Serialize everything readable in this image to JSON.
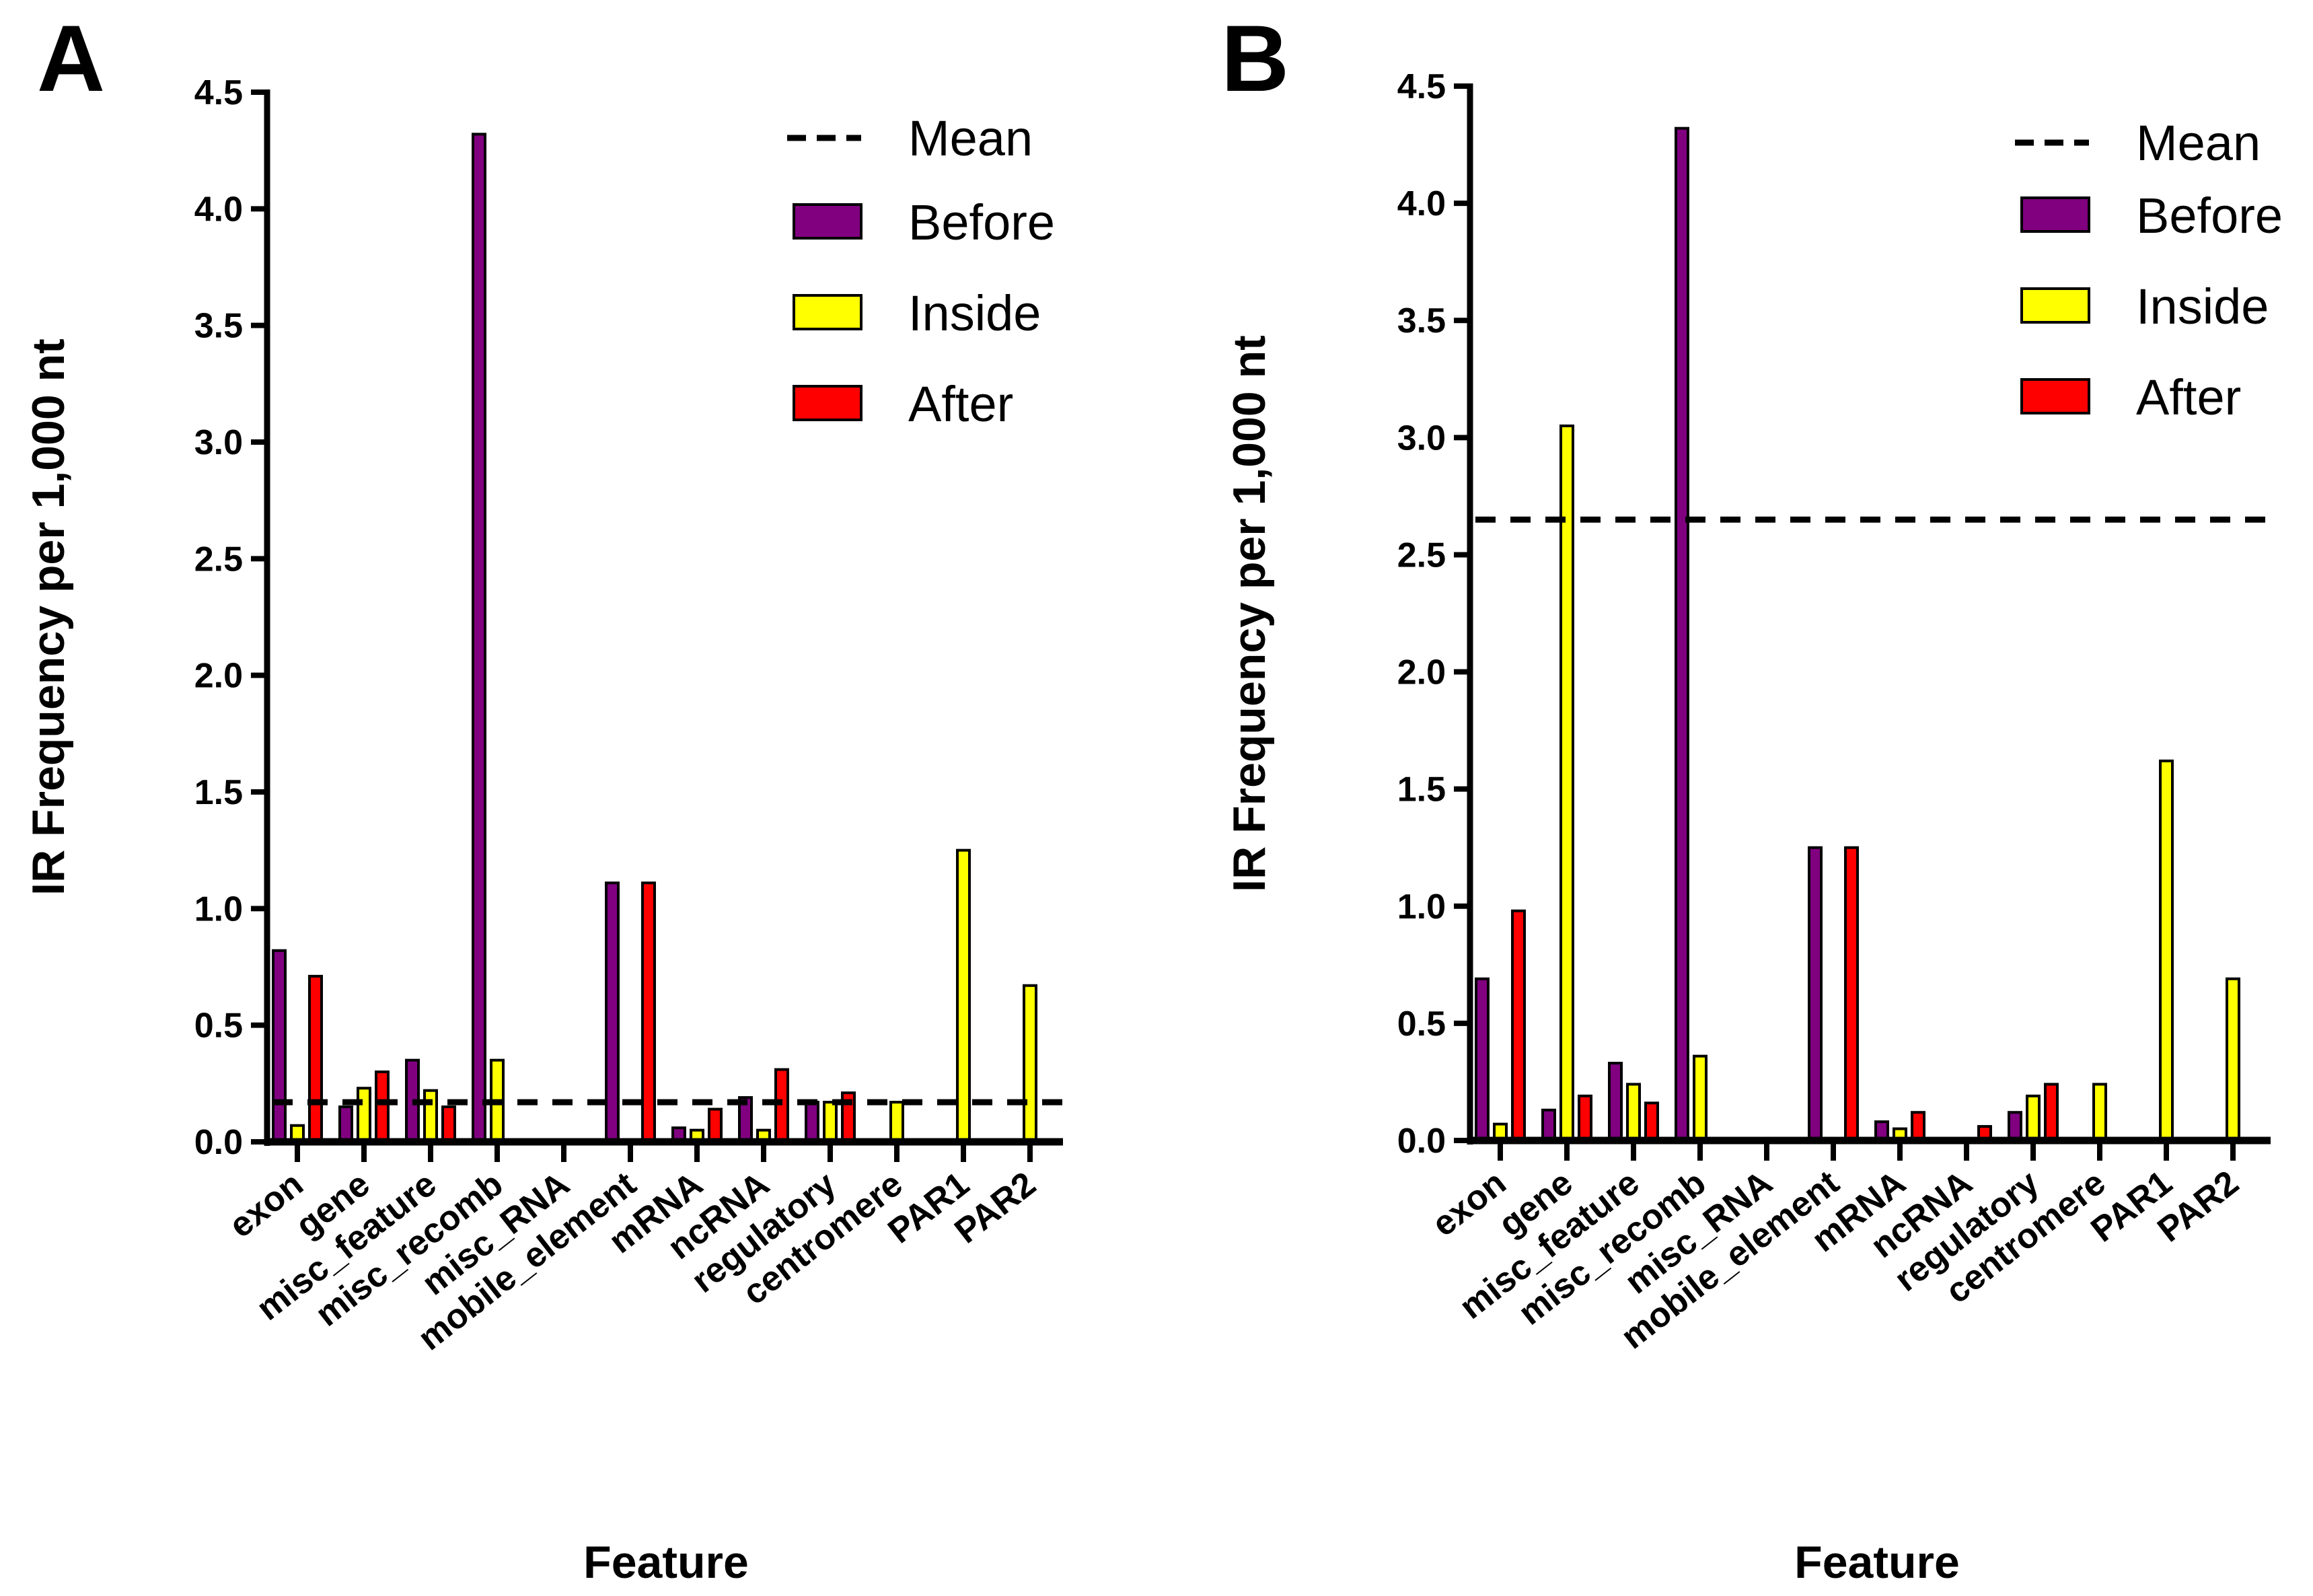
{
  "chart_data": [
    {
      "type": "bar",
      "panel_label": "A",
      "xlabel": "Feature",
      "ylabel": "IR Frequency per 1,000 nt",
      "ylim": [
        0,
        4.5
      ],
      "yticks": [
        "0.0",
        "0.5",
        "1.0",
        "1.5",
        "2.0",
        "2.5",
        "3.0",
        "3.5",
        "4.0",
        "4.5"
      ],
      "categories": [
        "exon",
        "gene",
        "misc_feature",
        "misc_recomb",
        "misc_RNA",
        "mobile_element",
        "mRNA",
        "ncRNA",
        "regulatory",
        "centromere",
        "PAR1",
        "PAR2"
      ],
      "series": [
        {
          "name": "Before",
          "color": "#800080",
          "values": [
            0.82,
            0.15,
            0.35,
            4.32,
            0.01,
            1.11,
            0.06,
            0.19,
            0.17,
            0,
            0,
            0
          ]
        },
        {
          "name": "Inside",
          "color": "#ffff00",
          "values": [
            0.07,
            0.23,
            0.22,
            0.35,
            0.01,
            0,
            0.05,
            0.05,
            0.17,
            0.17,
            1.25,
            0.67
          ]
        },
        {
          "name": "After",
          "color": "#ff0000",
          "values": [
            0.71,
            0.3,
            0.15,
            0,
            0,
            1.11,
            0.14,
            0.31,
            0.21,
            0,
            0,
            0
          ]
        }
      ],
      "mean": 0.17,
      "legend": {
        "mean_label": "Mean",
        "position": "top-right"
      }
    },
    {
      "type": "bar",
      "panel_label": "B",
      "xlabel": "Feature",
      "ylabel": "IR Frequency per 1,000 nt",
      "ylim": [
        0,
        4.5
      ],
      "yticks": [
        "0.0",
        "0.5",
        "1.0",
        "1.5",
        "2.0",
        "2.5",
        "3.0",
        "3.5",
        "4.0",
        "4.5"
      ],
      "categories": [
        "exon",
        "gene",
        "misc_feature",
        "misc_recomb",
        "misc_RNA",
        "mobile_element",
        "mRNA",
        "ncRNA",
        "regulatory",
        "centromere",
        "PAR1",
        "PAR2"
      ],
      "series": [
        {
          "name": "Before",
          "color": "#800080",
          "values": [
            0.69,
            0.13,
            0.33,
            4.32,
            0,
            1.25,
            0.08,
            0,
            0.12,
            0,
            0,
            0
          ]
        },
        {
          "name": "Inside",
          "color": "#ffff00",
          "values": [
            0.07,
            3.05,
            0.24,
            0.36,
            0,
            0,
            0.05,
            0,
            0.19,
            0.24,
            1.62,
            0.69
          ]
        },
        {
          "name": "After",
          "color": "#ff0000",
          "values": [
            0.98,
            0.19,
            0.16,
            0,
            0,
            1.25,
            0.12,
            0.06,
            0.24,
            0,
            0,
            0
          ]
        }
      ],
      "mean": 2.65,
      "legend": {
        "mean_label": "Mean",
        "position": "top-right"
      }
    }
  ]
}
